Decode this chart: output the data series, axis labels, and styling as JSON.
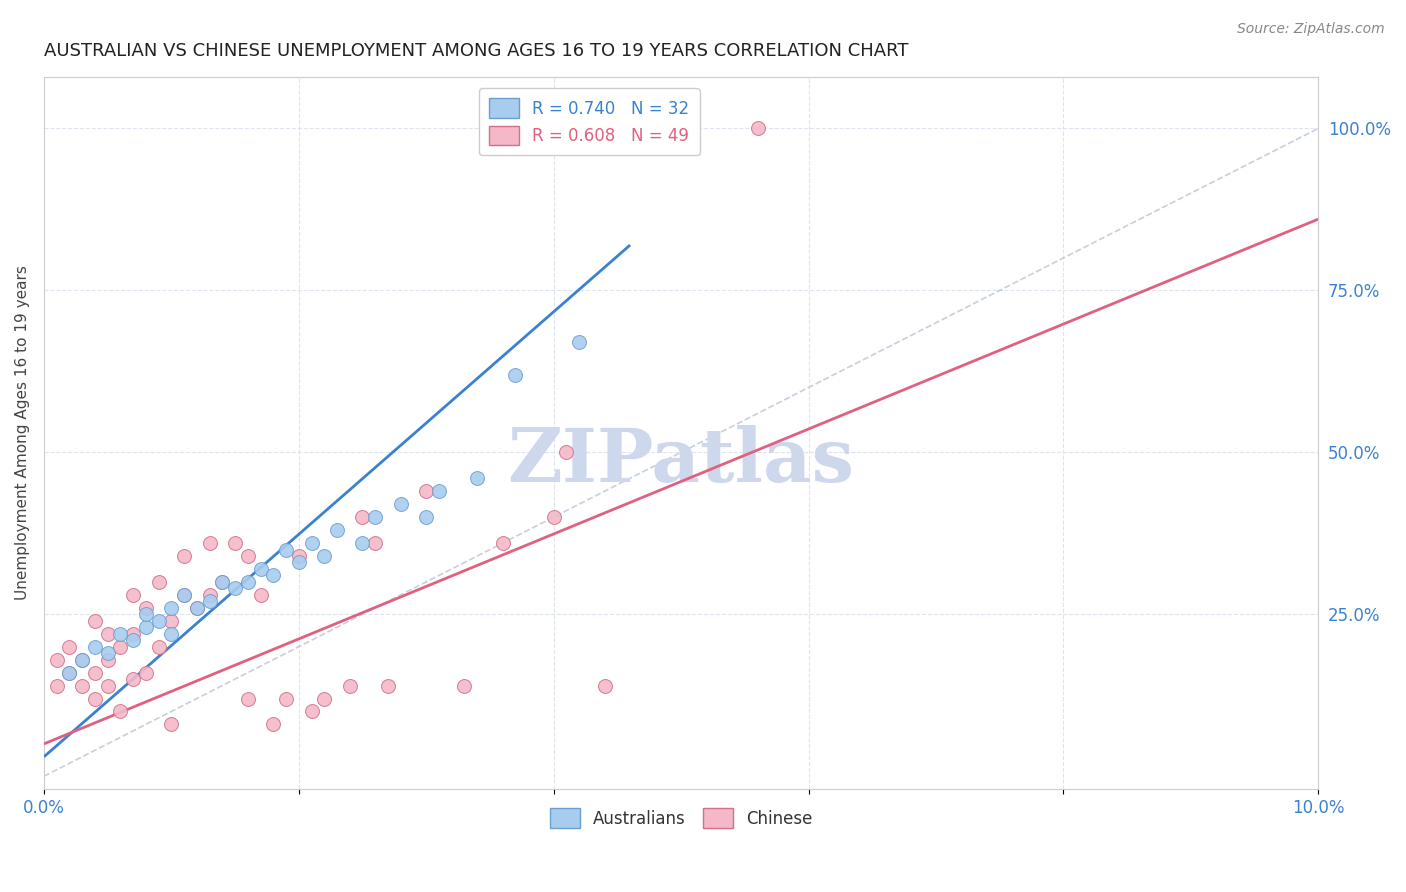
{
  "title": "AUSTRALIAN VS CHINESE UNEMPLOYMENT AMONG AGES 16 TO 19 YEARS CORRELATION CHART",
  "source": "Source: ZipAtlas.com",
  "ylabel": "Unemployment Among Ages 16 to 19 years",
  "xlim": [
    0.0,
    0.1
  ],
  "ylim": [
    -0.02,
    1.08
  ],
  "yticks_right": [
    0.25,
    0.5,
    0.75,
    1.0
  ],
  "ytick_right_labels": [
    "25.0%",
    "50.0%",
    "75.0%",
    "100.0%"
  ],
  "legend_entries": [
    {
      "label": "R = 0.740   N = 32",
      "color": "#7ab3e0"
    },
    {
      "label": "R = 0.608   N = 49",
      "color": "#f4a0b5"
    }
  ],
  "watermark": "ZIPatlas",
  "watermark_color": "#cdd8ed",
  "aus_color": "#a8ccee",
  "aus_edge_color": "#6a9fd0",
  "chinese_color": "#f4b8c8",
  "chinese_edge_color": "#d0708a",
  "trend_aus_color": "#3a82d0",
  "trend_chinese_color": "#e06080",
  "ref_line_color": "#b8c4d4",
  "background_color": "#ffffff",
  "title_fontsize": 13,
  "source_fontsize": 10,
  "aus_scatter_x": [
    0.002,
    0.003,
    0.004,
    0.005,
    0.006,
    0.007,
    0.008,
    0.008,
    0.009,
    0.01,
    0.01,
    0.011,
    0.012,
    0.013,
    0.014,
    0.015,
    0.016,
    0.017,
    0.018,
    0.019,
    0.02,
    0.021,
    0.022,
    0.023,
    0.025,
    0.026,
    0.028,
    0.03,
    0.031,
    0.034,
    0.037,
    0.042
  ],
  "aus_scatter_y": [
    0.16,
    0.18,
    0.2,
    0.19,
    0.22,
    0.21,
    0.23,
    0.25,
    0.24,
    0.22,
    0.26,
    0.28,
    0.26,
    0.27,
    0.3,
    0.29,
    0.3,
    0.32,
    0.31,
    0.35,
    0.33,
    0.36,
    0.34,
    0.38,
    0.36,
    0.4,
    0.42,
    0.4,
    0.44,
    0.46,
    0.62,
    0.67
  ],
  "chinese_scatter_x": [
    0.001,
    0.001,
    0.002,
    0.002,
    0.003,
    0.003,
    0.004,
    0.004,
    0.004,
    0.005,
    0.005,
    0.005,
    0.006,
    0.006,
    0.007,
    0.007,
    0.007,
    0.008,
    0.008,
    0.009,
    0.009,
    0.01,
    0.01,
    0.011,
    0.011,
    0.012,
    0.013,
    0.013,
    0.014,
    0.015,
    0.016,
    0.016,
    0.017,
    0.018,
    0.019,
    0.02,
    0.021,
    0.022,
    0.024,
    0.025,
    0.026,
    0.027,
    0.03,
    0.033,
    0.036,
    0.04,
    0.041,
    0.044,
    0.056
  ],
  "chinese_scatter_y": [
    0.14,
    0.18,
    0.16,
    0.2,
    0.14,
    0.18,
    0.12,
    0.16,
    0.24,
    0.14,
    0.18,
    0.22,
    0.1,
    0.2,
    0.15,
    0.22,
    0.28,
    0.16,
    0.26,
    0.2,
    0.3,
    0.08,
    0.24,
    0.28,
    0.34,
    0.26,
    0.28,
    0.36,
    0.3,
    0.36,
    0.12,
    0.34,
    0.28,
    0.08,
    0.12,
    0.34,
    0.1,
    0.12,
    0.14,
    0.4,
    0.36,
    0.14,
    0.44,
    0.14,
    0.36,
    0.4,
    0.5,
    0.14,
    1.0
  ],
  "aus_trend_x": [
    0.0,
    0.046
  ],
  "aus_trend_y": [
    0.03,
    0.82
  ],
  "chinese_trend_x": [
    0.0,
    0.1
  ],
  "chinese_trend_y": [
    0.05,
    0.86
  ],
  "ref_line_x": [
    0.0,
    0.1
  ],
  "ref_line_y": [
    0.0,
    1.0
  ]
}
